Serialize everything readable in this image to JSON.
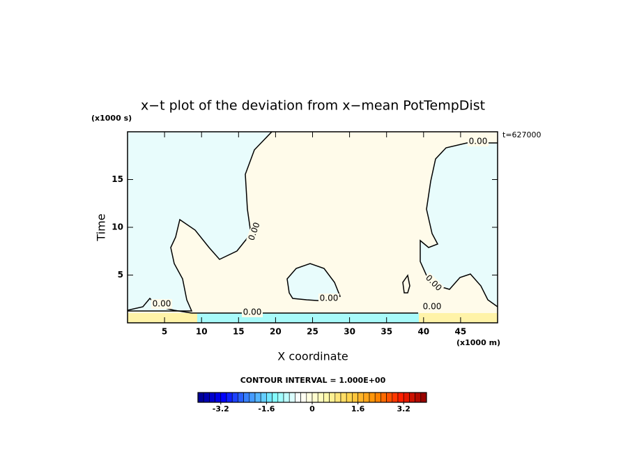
{
  "chart_data": {
    "type": "contour",
    "title": "x−t plot of the deviation from x−mean PotTempDist",
    "y_unit": "(x1000 s)",
    "x_unit": "(x1000 m)",
    "time_label": "t=627000",
    "ylabel": "Time",
    "xlabel": "X coordinate",
    "xlim": [
      0,
      50
    ],
    "ylim": [
      0,
      20
    ],
    "xticks": [
      5,
      10,
      15,
      20,
      25,
      30,
      35,
      40,
      45
    ],
    "yticks": [
      5,
      10,
      15
    ],
    "contour_labels": [
      "0.00",
      "0.00",
      "0.00",
      "0.00",
      "0.00",
      "0.00",
      "0.00"
    ],
    "colors": {
      "negative": "#e8fcfc",
      "positive": "#fffbea",
      "weak_negative": "#a8fafa",
      "weak_positive": "#fff3a8"
    },
    "colorbar": {
      "caption": "CONTOUR INTERVAL = 1.000E+00",
      "lim": [
        -4,
        4
      ],
      "step": 0.2,
      "ticks": [
        -3.2,
        -1.6,
        0,
        1.6,
        3.2
      ],
      "stops": [
        "#00008b",
        "#0000ff",
        "#3c8cff",
        "#7ffcff",
        "#ffffff",
        "#fffcb0",
        "#ffd24a",
        "#ff8c00",
        "#ff1e00",
        "#8b0000"
      ]
    }
  }
}
